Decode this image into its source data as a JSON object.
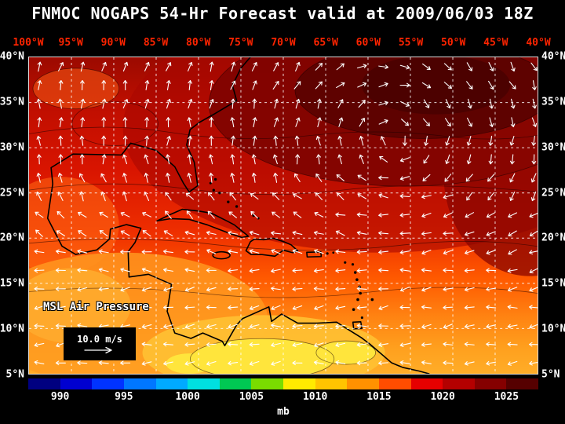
{
  "title": "FNMOC NOGAPS 54-Hr Forecast valid at 2009/06/03 18Z",
  "map": {
    "overlay_label": "MSL Air Pressure",
    "wind_legend": {
      "speed_label": "10.0 m/s"
    }
  },
  "axes": {
    "lon_labels": [
      "100°W",
      "95°W",
      "90°W",
      "85°W",
      "80°W",
      "75°W",
      "70°W",
      "65°W",
      "60°W",
      "55°W",
      "50°W",
      "45°W",
      "40°W"
    ],
    "lat_labels": [
      "40°N",
      "35°N",
      "30°N",
      "25°N",
      "20°N",
      "15°N",
      "10°N",
      "5°N"
    ]
  },
  "colorbar": {
    "unit": "mb",
    "scale_min": 987.5,
    "scale_max": 1027.5,
    "tick_labels": [
      "990",
      "995",
      "1000",
      "1005",
      "1010",
      "1015",
      "1020",
      "1025"
    ],
    "segments": [
      {
        "from": 987.5,
        "to": 990,
        "color": "#000080"
      },
      {
        "from": 990,
        "to": 992.5,
        "color": "#0000D0"
      },
      {
        "from": 992.5,
        "to": 995,
        "color": "#0033FF"
      },
      {
        "from": 995,
        "to": 997.5,
        "color": "#0077FF"
      },
      {
        "from": 997.5,
        "to": 1000,
        "color": "#00AAFF"
      },
      {
        "from": 1000,
        "to": 1002.5,
        "color": "#00E0E0"
      },
      {
        "from": 1002.5,
        "to": 1005,
        "color": "#00C853"
      },
      {
        "from": 1005,
        "to": 1007.5,
        "color": "#7ADC00"
      },
      {
        "from": 1007.5,
        "to": 1010,
        "color": "#FFEB00"
      },
      {
        "from": 1010,
        "to": 1012.5,
        "color": "#FFC400"
      },
      {
        "from": 1012.5,
        "to": 1015,
        "color": "#FF9100"
      },
      {
        "from": 1015,
        "to": 1017.5,
        "color": "#FF4D00"
      },
      {
        "from": 1017.5,
        "to": 1020,
        "color": "#E60000"
      },
      {
        "from": 1020,
        "to": 1022.5,
        "color": "#B40000"
      },
      {
        "from": 1022.5,
        "to": 1025,
        "color": "#850000"
      },
      {
        "from": 1025,
        "to": 1027.5,
        "color": "#560000"
      }
    ]
  },
  "chart_data": {
    "type": "heatmap",
    "title": "FNMOC NOGAPS 54-Hr Forecast valid at 2009/06/03 18Z",
    "variable": "MSL Air Pressure",
    "unit": "mb",
    "x_axis": {
      "label": "longitude",
      "ticks": [
        "100°W",
        "95°W",
        "90°W",
        "85°W",
        "80°W",
        "75°W",
        "70°W",
        "65°W",
        "60°W",
        "55°W",
        "50°W",
        "45°W",
        "40°W"
      ]
    },
    "y_axis": {
      "label": "latitude",
      "ticks": [
        "40°N",
        "35°N",
        "30°N",
        "25°N",
        "20°N",
        "15°N",
        "10°N",
        "5°N"
      ]
    },
    "colorbar_ticks": [
      990,
      995,
      1000,
      1005,
      1010,
      1015,
      1020,
      1025
    ],
    "colorbar_range": [
      987.5,
      1027.5
    ],
    "overlay": "surface wind vectors drawn as white arrows; reference arrow = 10.0 m/s",
    "features": [
      {
        "name": "subtropical high (darkest red shading)",
        "approx_location": "30-40°N, 42-62°W",
        "approx_value_mb": "1025+"
      },
      {
        "name": "broad high-pressure ridge",
        "approx_location": "north of 15°N across basin",
        "approx_value_mb": "1015-1025"
      },
      {
        "name": "lowest pressures (yellow shading)",
        "approx_location": "8-13°N, 58-85°W",
        "approx_value_mb": "1005-1010"
      },
      {
        "name": "easterly trade-wind flow",
        "approx_location": "south of 20°N",
        "approx_value_mb": ""
      }
    ]
  }
}
